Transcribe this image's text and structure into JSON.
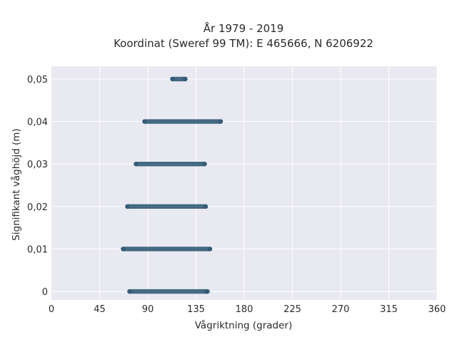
{
  "chart_data": {
    "type": "scatter",
    "title_line1": "År 1979 - 2019",
    "title_line2": "Koordinat (Sweref 99 TM): E 465666, N 6206922",
    "xlabel": "Vågriktning (grader)",
    "ylabel": "Signifikant våghöjd (m)",
    "xlim": [
      0,
      360
    ],
    "ylim": [
      -0.002,
      0.053
    ],
    "xticks": [
      0,
      45,
      90,
      135,
      180,
      225,
      270,
      315,
      360
    ],
    "xtick_labels": [
      "0",
      "45",
      "90",
      "135",
      "180",
      "225",
      "270",
      "315",
      "360"
    ],
    "yticks": [
      0,
      0.01,
      0.02,
      0.03,
      0.04,
      0.05
    ],
    "ytick_labels": [
      "0",
      "0,01",
      "0,02",
      "0,03",
      "0,04",
      "0,05"
    ],
    "grid": true,
    "point_color": "#2f5873",
    "background_color": "#e9e9f1",
    "bands": [
      {
        "y": 0.0,
        "x_min": 73,
        "x_max": 145,
        "x_outlier": 146
      },
      {
        "y": 0.01,
        "x_min": 67,
        "x_max": 148
      },
      {
        "y": 0.02,
        "x_min": 71,
        "x_max": 144
      },
      {
        "y": 0.03,
        "x_min": 79,
        "x_max": 143
      },
      {
        "y": 0.04,
        "x_min": 87,
        "x_max": 158
      },
      {
        "y": 0.05,
        "x_min": 113,
        "x_max": 125
      }
    ]
  }
}
